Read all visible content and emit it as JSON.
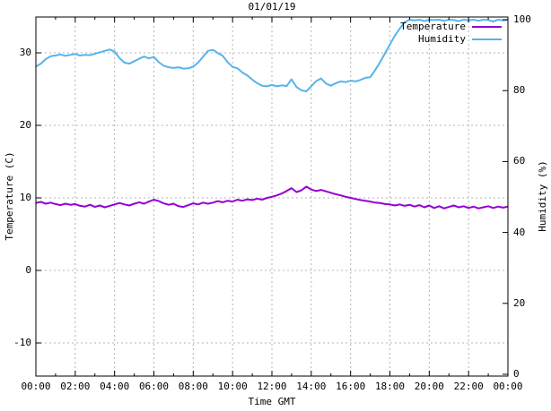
{
  "chart_data": {
    "type": "line",
    "title": "01/01/19",
    "xlabel": "Time GMT",
    "grid": true,
    "legend_position": "top-right-inside",
    "x_unit": "hours",
    "x_range": [
      0,
      24
    ],
    "x_step_hours": 0.25,
    "x_minor_tick_hours": 1,
    "x_tick_labels": [
      "00:00",
      "02:00",
      "04:00",
      "06:00",
      "08:00",
      "10:00",
      "12:00",
      "14:00",
      "16:00",
      "18:00",
      "20:00",
      "22:00",
      "00:00"
    ],
    "y_left": {
      "label": "Temperature (C)",
      "ticks": [
        30,
        20,
        10,
        0,
        -10
      ],
      "range": [
        -14.6,
        34.9
      ]
    },
    "y_right": {
      "label": "Humidity (%)",
      "ticks": [
        100,
        80,
        60,
        40,
        20,
        0
      ],
      "range": [
        0,
        100
      ]
    },
    "colors": {
      "temperature": "#9400d3",
      "humidity": "#56b4e9",
      "grid": "#b4b4b4",
      "frame": "#000000"
    },
    "series": [
      {
        "name": "Temperature",
        "axis": "left",
        "color": "#9400d3",
        "values": [
          9.3,
          9.45,
          9.2,
          9.35,
          9.15,
          9.0,
          9.2,
          9.05,
          9.15,
          8.9,
          8.8,
          9.05,
          8.75,
          8.95,
          8.7,
          8.9,
          9.1,
          9.3,
          9.1,
          8.95,
          9.2,
          9.4,
          9.2,
          9.5,
          9.75,
          9.55,
          9.25,
          9.05,
          9.2,
          8.85,
          8.75,
          9.0,
          9.25,
          9.1,
          9.35,
          9.2,
          9.35,
          9.55,
          9.4,
          9.6,
          9.5,
          9.75,
          9.6,
          9.8,
          9.7,
          9.9,
          9.75,
          10.0,
          10.15,
          10.35,
          10.6,
          10.95,
          11.35,
          10.8,
          11.05,
          11.55,
          11.15,
          10.95,
          11.1,
          10.9,
          10.7,
          10.5,
          10.35,
          10.15,
          10.0,
          9.85,
          9.7,
          9.6,
          9.5,
          9.35,
          9.3,
          9.15,
          9.1,
          8.95,
          9.1,
          8.9,
          9.05,
          8.8,
          9.0,
          8.7,
          8.95,
          8.6,
          8.85,
          8.55,
          8.75,
          8.95,
          8.7,
          8.85,
          8.6,
          8.8,
          8.55,
          8.7,
          8.85,
          8.6,
          8.8,
          8.65,
          8.8
        ]
      },
      {
        "name": "Humidity",
        "axis": "right",
        "color": "#56b4e9",
        "values": [
          86.8,
          87.6,
          88.9,
          89.7,
          89.9,
          90.2,
          89.8,
          90.1,
          90.3,
          89.9,
          90.1,
          90.0,
          90.4,
          90.8,
          91.2,
          91.6,
          91.0,
          89.2,
          87.9,
          87.6,
          88.3,
          89.0,
          89.6,
          89.1,
          89.5,
          88.0,
          87.0,
          86.6,
          86.4,
          86.6,
          86.2,
          86.3,
          86.8,
          87.9,
          89.6,
          91.2,
          91.5,
          90.6,
          89.8,
          88.0,
          86.7,
          86.3,
          85.1,
          84.3,
          83.1,
          82.1,
          81.4,
          81.2,
          81.6,
          81.2,
          81.5,
          81.3,
          83.2,
          81.0,
          80.1,
          79.8,
          81.2,
          82.7,
          83.4,
          82.0,
          81.4,
          82.1,
          82.6,
          82.4,
          82.8,
          82.6,
          83.0,
          83.6,
          83.8,
          85.8,
          88.0,
          90.5,
          93.0,
          95.5,
          97.5,
          99.3,
          100,
          99.8,
          100,
          99.6,
          100,
          99.9,
          100,
          99.7,
          100,
          99.9,
          99.6,
          100,
          99.8,
          100,
          99.7,
          100,
          99.9,
          99.5,
          100,
          99.8,
          100
        ]
      }
    ]
  }
}
